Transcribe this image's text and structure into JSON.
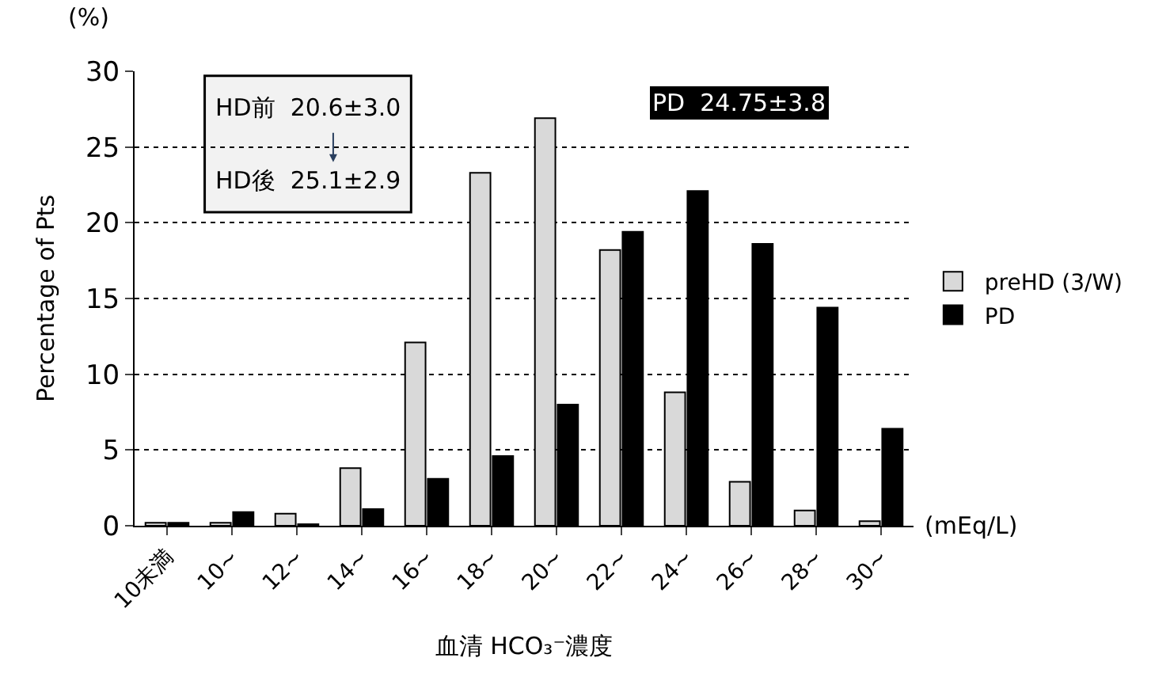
{
  "chart_data": {
    "type": "bar",
    "categories": [
      "10未満",
      "10~",
      "12~",
      "14~",
      "16~",
      "18~",
      "20~",
      "22~",
      "24~",
      "26~",
      "28~",
      "30~"
    ],
    "series": [
      {
        "name": "preHD (3/W)",
        "color": "#d9d9d9",
        "values": [
          0.2,
          0.2,
          0.8,
          3.8,
          12.1,
          23.3,
          26.9,
          18.2,
          8.8,
          2.9,
          1.0,
          0.3
        ]
      },
      {
        "name": "PD",
        "color": "#000000",
        "values": [
          0.2,
          0.9,
          0.1,
          1.1,
          3.1,
          4.6,
          8.0,
          19.4,
          22.1,
          18.6,
          14.4,
          6.4
        ]
      }
    ],
    "xlabel": "血清 HCO₃⁻濃度",
    "ylabel": "Percentage of Pts",
    "ylim": [
      0,
      30
    ],
    "yticks": [
      0,
      5,
      10,
      15,
      20,
      25,
      30
    ],
    "grid": "y",
    "legend": "right",
    "annotations": [
      "HD前  20.6±3.0",
      "HD後  25.1±2.9",
      "PD  24.75±3.8",
      "(%)",
      "(mEq/L)"
    ]
  }
}
